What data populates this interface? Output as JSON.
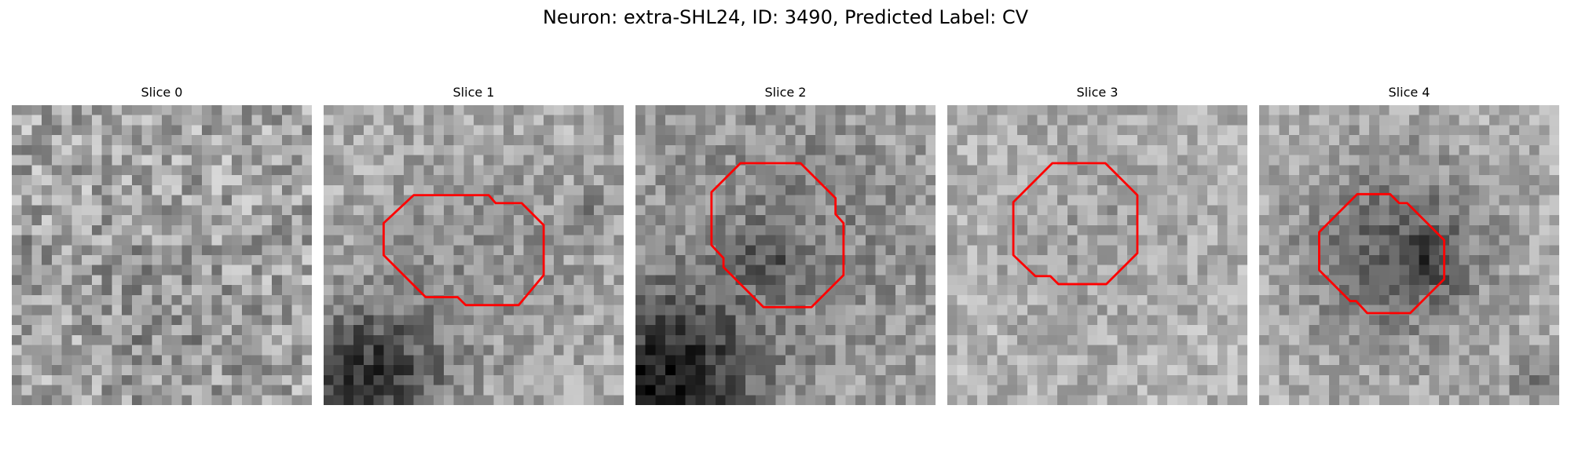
{
  "figure": {
    "title": "Neuron: extra-SHL24, ID: 3490, Predicted Label: CV"
  },
  "style": {
    "contour_color": "#ff0000"
  },
  "panels": [
    {
      "title": "Slice 0",
      "seed": 11,
      "base": 165,
      "spread": 105,
      "blobs": [
        [
          0.5,
          0.7,
          0.18,
          -25
        ],
        [
          0.08,
          0.55,
          0.08,
          -30
        ]
      ],
      "contour": []
    },
    {
      "title": "Slice 1",
      "seed": 23,
      "base": 172,
      "spread": 78,
      "blobs": [
        [
          0.15,
          0.91,
          0.17,
          -120
        ],
        [
          0.52,
          0.52,
          0.26,
          -28
        ],
        [
          0.9,
          0.35,
          0.06,
          -30
        ]
      ],
      "contour": [
        [
          14.0,
          9.0
        ],
        [
          16.5,
          9.0
        ],
        [
          17.2,
          9.8
        ],
        [
          19.8,
          9.8
        ],
        [
          22.0,
          12.0
        ],
        [
          22.0,
          17.0
        ],
        [
          19.5,
          20.0
        ],
        [
          14.2,
          20.0
        ],
        [
          13.4,
          19.2
        ],
        [
          10.2,
          19.2
        ],
        [
          6.0,
          15.0
        ],
        [
          6.0,
          11.8
        ],
        [
          9.0,
          9.0
        ]
      ]
    },
    {
      "title": "Slice 2",
      "seed": 37,
      "base": 165,
      "spread": 78,
      "blobs": [
        [
          0.1,
          0.92,
          0.2,
          -130
        ],
        [
          0.5,
          0.47,
          0.35,
          -35
        ],
        [
          0.45,
          0.5,
          0.07,
          -45
        ]
      ],
      "contour": [
        [
          10.5,
          5.8
        ],
        [
          16.5,
          5.8
        ],
        [
          20.0,
          9.3
        ],
        [
          20.0,
          10.9
        ],
        [
          20.8,
          11.8
        ],
        [
          20.8,
          17.0
        ],
        [
          17.6,
          20.2
        ],
        [
          12.8,
          20.2
        ],
        [
          8.8,
          16.2
        ],
        [
          8.8,
          15.3
        ],
        [
          7.6,
          14.0
        ],
        [
          7.6,
          8.7
        ]
      ]
    },
    {
      "title": "Slice 3",
      "seed": 49,
      "base": 178,
      "spread": 72,
      "blobs": [
        [
          0.5,
          0.42,
          0.24,
          -20
        ]
      ],
      "contour": [
        [
          10.5,
          5.8
        ],
        [
          15.8,
          5.8
        ],
        [
          19.0,
          9.0
        ],
        [
          19.0,
          14.8
        ],
        [
          15.9,
          17.9
        ],
        [
          11.1,
          17.9
        ],
        [
          10.3,
          17.1
        ],
        [
          8.8,
          17.1
        ],
        [
          6.6,
          15.0
        ],
        [
          6.6,
          9.7
        ]
      ]
    },
    {
      "title": "Slice 4",
      "seed": 61,
      "base": 176,
      "spread": 72,
      "blobs": [
        [
          0.45,
          0.48,
          0.23,
          -75
        ],
        [
          0.58,
          0.52,
          0.07,
          -55
        ],
        [
          0.95,
          0.92,
          0.07,
          -60
        ]
      ],
      "contour": [
        [
          9.8,
          8.9
        ],
        [
          13.1,
          8.9
        ],
        [
          14.0,
          9.8
        ],
        [
          14.8,
          9.8
        ],
        [
          18.5,
          13.5
        ],
        [
          18.5,
          17.4
        ],
        [
          15.1,
          20.8
        ],
        [
          10.8,
          20.8
        ],
        [
          9.7,
          19.6
        ],
        [
          9.1,
          19.6
        ],
        [
          6.0,
          16.5
        ],
        [
          6.0,
          12.7
        ]
      ]
    }
  ]
}
